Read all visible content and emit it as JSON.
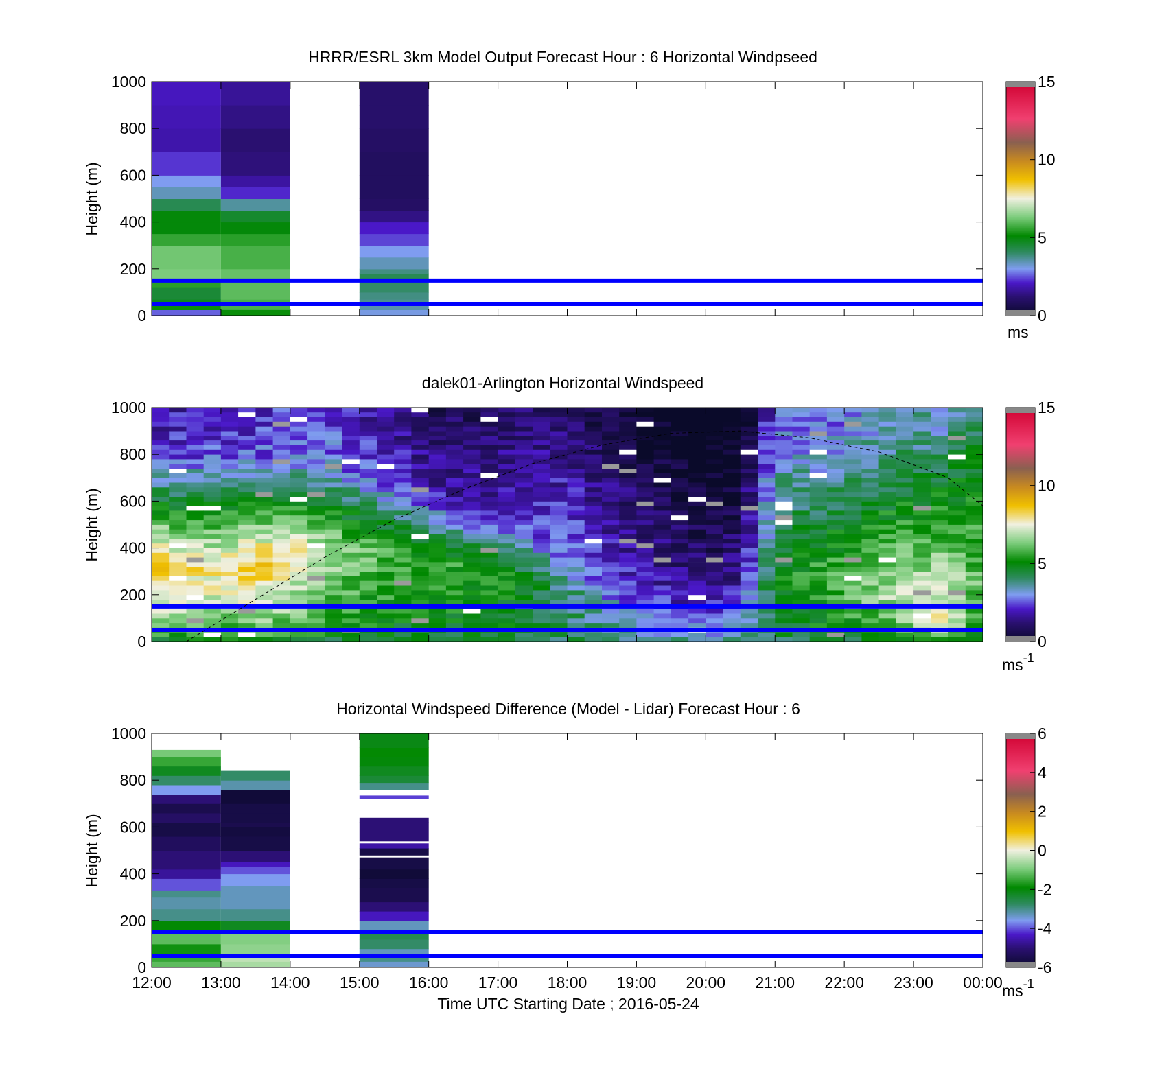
{
  "figure": {
    "xlabel": "Time UTC  Starting Date ; 2016-05-24",
    "x_ticks": [
      "12:00",
      "13:00",
      "14:00",
      "15:00",
      "16:00",
      "17:00",
      "18:00",
      "19:00",
      "20:00",
      "21:00",
      "22:00",
      "23:00",
      "00:00"
    ],
    "reference_lines_m": [
      50,
      150
    ],
    "reference_line_color": "#0000ff"
  },
  "chart_data": [
    {
      "id": "model",
      "type": "heatmap",
      "title": "HRRR/ESRL 3km Model Output   Forecast Hour : 6 Horizontal Windpseed",
      "ylabel": "Height (m)",
      "xlim": [
        12,
        24
      ],
      "ylim": [
        0,
        1000
      ],
      "y_ticks": [
        0,
        200,
        400,
        600,
        800,
        1000
      ],
      "colorbar": {
        "ticks": [
          0,
          5,
          10,
          15
        ],
        "range": [
          0,
          15
        ],
        "unit": "ms"
      },
      "columns": [
        {
          "t0": 12,
          "t1": 13,
          "cells": [
            [
              25,
              2.6
            ],
            [
              45,
              5.2
            ],
            [
              70,
              4.8
            ],
            [
              120,
              4.5
            ],
            [
              150,
              5.5
            ],
            [
              200,
              6.3
            ],
            [
              300,
              6.2
            ],
            [
              350,
              5.6
            ],
            [
              400,
              5.0
            ],
            [
              450,
              5.0
            ],
            [
              500,
              4.2
            ],
            [
              550,
              3.4
            ],
            [
              600,
              3.0
            ],
            [
              700,
              2.3
            ],
            [
              800,
              1.8
            ],
            [
              900,
              1.9
            ],
            [
              1000,
              2.0
            ]
          ]
        },
        {
          "t0": 13,
          "t1": 14,
          "cells": [
            [
              25,
              5.2
            ],
            [
              70,
              5.8
            ],
            [
              150,
              6.0
            ],
            [
              200,
              6.1
            ],
            [
              300,
              5.8
            ],
            [
              350,
              5.5
            ],
            [
              400,
              5.0
            ],
            [
              450,
              4.6
            ],
            [
              500,
              3.6
            ],
            [
              550,
              2.2
            ],
            [
              600,
              1.7
            ],
            [
              700,
              1.3
            ],
            [
              800,
              1.2
            ],
            [
              900,
              1.4
            ],
            [
              1000,
              1.6
            ]
          ]
        },
        {
          "t0": 15,
          "t1": 16,
          "cells": [
            [
              25,
              3.1
            ],
            [
              45,
              3.5
            ],
            [
              70,
              3.7
            ],
            [
              100,
              3.8
            ],
            [
              150,
              4.0
            ],
            [
              180,
              4.2
            ],
            [
              200,
              3.8
            ],
            [
              250,
              3.4
            ],
            [
              300,
              3.0
            ],
            [
              350,
              2.4
            ],
            [
              400,
              2.1
            ],
            [
              450,
              1.4
            ],
            [
              500,
              1.0
            ],
            [
              600,
              0.9
            ],
            [
              700,
              0.9
            ],
            [
              800,
              1.0
            ],
            [
              900,
              1.1
            ],
            [
              1000,
              1.1
            ]
          ]
        }
      ]
    },
    {
      "id": "lidar",
      "type": "heatmap",
      "title": "dalek01-Arlington  Horizontal Windspeed",
      "ylabel": "Height (m)",
      "xlim": [
        12,
        24
      ],
      "ylim": [
        0,
        1000
      ],
      "y_ticks": [
        0,
        200,
        400,
        600,
        800,
        1000
      ],
      "colorbar": {
        "ticks": [
          0,
          5,
          10,
          15
        ],
        "range": [
          0,
          15
        ],
        "unit_base": "ms",
        "unit_exp": "-1"
      },
      "profiles": [
        {
          "t": 12.0,
          "jet_height": 330,
          "jet_speed": 8.8,
          "top_height": 780,
          "top_speed": 2.2
        },
        {
          "t": 12.5,
          "jet_height": 300,
          "jet_speed": 8.2,
          "top_height": 800,
          "top_speed": 2.4
        },
        {
          "t": 13.0,
          "jet_height": 320,
          "jet_speed": 7.8,
          "top_height": 800,
          "top_speed": 2.4
        },
        {
          "t": 13.5,
          "jet_height": 330,
          "jet_speed": 8.6,
          "top_height": 790,
          "top_speed": 2.6
        },
        {
          "t": 14.0,
          "jet_height": 380,
          "jet_speed": 8.0,
          "top_height": 790,
          "top_speed": 2.8
        },
        {
          "t": 14.5,
          "jet_height": 380,
          "jet_speed": 7.0,
          "top_height": 750,
          "top_speed": 3.0
        },
        {
          "t": 15.0,
          "jet_height": 400,
          "jet_speed": 6.2,
          "top_height": 720,
          "top_speed": 2.6
        },
        {
          "t": 15.5,
          "jet_height": 380,
          "jet_speed": 5.8,
          "top_height": 700,
          "top_speed": 2.2
        },
        {
          "t": 16.0,
          "jet_height": 350,
          "jet_speed": 5.6,
          "top_height": 650,
          "top_speed": 1.8
        },
        {
          "t": 16.5,
          "jet_height": 320,
          "jet_speed": 5.5,
          "top_height": 600,
          "top_speed": 1.8
        },
        {
          "t": 17.0,
          "jet_height": 300,
          "jet_speed": 5.3,
          "top_height": 560,
          "top_speed": 2.0
        },
        {
          "t": 17.5,
          "jet_height": 250,
          "jet_speed": 4.8,
          "top_height": 450,
          "top_speed": 2.5
        },
        {
          "t": 18.0,
          "jet_height": 200,
          "jet_speed": 4.0,
          "top_height": 400,
          "top_speed": 2.6
        },
        {
          "t": 18.5,
          "jet_height": 150,
          "jet_speed": 3.4,
          "top_height": 300,
          "top_speed": 2.3
        },
        {
          "t": 19.0,
          "jet_height": 120,
          "jet_speed": 3.0,
          "top_height": 250,
          "top_speed": 2.0
        },
        {
          "t": 19.5,
          "jet_height": 100,
          "jet_speed": 2.6,
          "top_height": 250,
          "top_speed": 1.6
        },
        {
          "t": 20.0,
          "jet_height": 100,
          "jet_speed": 2.4,
          "top_height": 250,
          "top_speed": 1.2
        },
        {
          "t": 20.5,
          "jet_height": 120,
          "jet_speed": 2.6,
          "top_height": 300,
          "top_speed": 1.4
        },
        {
          "t": 21.0,
          "jet_height": 200,
          "jet_speed": 4.9,
          "top_height": 800,
          "top_speed": 3.2
        },
        {
          "t": 21.5,
          "jet_height": 300,
          "jet_speed": 5.6,
          "top_height": 800,
          "top_speed": 3.0
        },
        {
          "t": 22.0,
          "jet_height": 250,
          "jet_speed": 6.0,
          "top_height": 800,
          "top_speed": 3.2
        },
        {
          "t": 22.5,
          "jet_height": 200,
          "jet_speed": 6.5,
          "top_height": 820,
          "top_speed": 3.6
        },
        {
          "t": 23.0,
          "jet_height": 150,
          "jet_speed": 7.3,
          "top_height": 850,
          "top_speed": 3.8
        },
        {
          "t": 23.5,
          "jet_height": 100,
          "jet_speed": 7.8,
          "top_height": 870,
          "top_speed": 3.6
        },
        {
          "t": 24.0,
          "jet_height": 300,
          "jet_speed": 5.6,
          "top_height": 900,
          "top_speed": 4.6
        }
      ],
      "boundary_layer_curve": [
        [
          12.5,
          0
        ],
        [
          13.5,
          180
        ],
        [
          14.5,
          360
        ],
        [
          15.5,
          520
        ],
        [
          16.5,
          650
        ],
        [
          17.5,
          760
        ],
        [
          18.5,
          840
        ],
        [
          19.5,
          890
        ],
        [
          20.5,
          900
        ],
        [
          21.5,
          870
        ],
        [
          22.5,
          810
        ],
        [
          23.5,
          700
        ],
        [
          24.0,
          580
        ]
      ]
    },
    {
      "id": "difference",
      "type": "heatmap",
      "title": "Horizontal Windspeed Difference (Model - Lidar) Forecast Hour : 6",
      "ylabel": "Height (m)",
      "xlim": [
        12,
        24
      ],
      "ylim": [
        0,
        1000
      ],
      "y_ticks": [
        0,
        200,
        400,
        600,
        800,
        1000
      ],
      "colorbar": {
        "ticks": [
          -6,
          -4,
          -2,
          0,
          2,
          4,
          6
        ],
        "range": [
          -6,
          6
        ],
        "unit_base": "ms",
        "unit_exp": "-1"
      },
      "columns": [
        {
          "t0": 12,
          "t1": 13,
          "cells": [
            [
              25,
              -1.2
            ],
            [
              60,
              -1.5
            ],
            [
              100,
              -1.8
            ],
            [
              150,
              -1.2
            ],
            [
              200,
              -1.9
            ],
            [
              250,
              -3.0
            ],
            [
              300,
              -3.2
            ],
            [
              330,
              -3.0
            ],
            [
              380,
              -4.0
            ],
            [
              420,
              -4.7
            ],
            [
              500,
              -5.0
            ],
            [
              560,
              -5.3
            ],
            [
              620,
              -5.6
            ],
            [
              660,
              -5.2
            ],
            [
              700,
              -5.5
            ],
            [
              740,
              -5.0
            ],
            [
              780,
              -3.6
            ],
            [
              820,
              -2.8
            ],
            [
              860,
              -2.2
            ],
            [
              900,
              -1.5
            ],
            [
              930,
              -1.0
            ]
          ]
        },
        {
          "t0": 13,
          "t1": 14,
          "cells": [
            [
              25,
              -0.6
            ],
            [
              60,
              -0.4
            ],
            [
              100,
              -0.8
            ],
            [
              150,
              -0.9
            ],
            [
              200,
              -2.2
            ],
            [
              250,
              -3.0
            ],
            [
              300,
              -3.3
            ],
            [
              350,
              -3.3
            ],
            [
              400,
              -3.6
            ],
            [
              430,
              -4.0
            ],
            [
              450,
              -4.4
            ],
            [
              500,
              -5.0
            ],
            [
              560,
              -5.6
            ],
            [
              600,
              -5.7
            ],
            [
              620,
              -5.5
            ],
            [
              660,
              -5.6
            ],
            [
              700,
              -5.6
            ],
            [
              760,
              -5.8
            ],
            [
              800,
              -3.2
            ],
            [
              840,
              -2.8
            ]
          ]
        },
        {
          "t0": 15,
          "t1": 16,
          "cells": [
            [
              25,
              -3.4
            ],
            [
              60,
              -3.0
            ],
            [
              80,
              -3.3
            ],
            [
              120,
              -2.8
            ],
            [
              150,
              -2.6
            ],
            [
              200,
              -3.3
            ],
            [
              240,
              -4.4
            ],
            [
              280,
              -5.0
            ],
            [
              340,
              -5.5
            ],
            [
              380,
              -5.6
            ],
            [
              420,
              -5.8
            ],
            [
              470,
              -5.6
            ],
            [
              480,
              null
            ],
            [
              510,
              -5.6
            ],
            [
              530,
              -4.6
            ],
            [
              540,
              null
            ],
            [
              580,
              -5.0
            ],
            [
              620,
              -5.0
            ],
            [
              640,
              -5.0
            ],
            [
              720,
              null
            ],
            [
              735,
              -4.1
            ],
            [
              760,
              null
            ],
            [
              790,
              -3.0
            ],
            [
              820,
              -2.4
            ],
            [
              860,
              -2.2
            ],
            [
              900,
              -2.0
            ],
            [
              940,
              -1.9
            ],
            [
              1000,
              -2.1
            ]
          ]
        }
      ]
    }
  ]
}
